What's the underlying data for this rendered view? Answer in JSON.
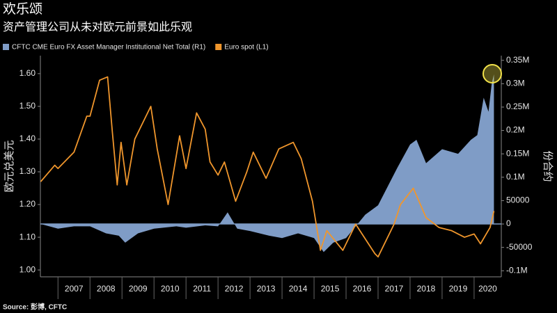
{
  "chart_data": {
    "type": "line-area",
    "title": "欢乐颂",
    "subtitle": "资产管理公司从未对欧元前景如此乐观",
    "source": "Source: 彭博, CFTC",
    "ylabel": "欧元兑美元",
    "y2label": "份合约",
    "xlim": [
      2006.45,
      2020.85
    ],
    "xticks": [
      {
        "value": 2007,
        "label": "2007"
      },
      {
        "value": 2008,
        "label": "2008"
      },
      {
        "value": 2009,
        "label": "2009"
      },
      {
        "value": 2010,
        "label": "2010"
      },
      {
        "value": 2011,
        "label": "2011"
      },
      {
        "value": 2012,
        "label": "2012"
      },
      {
        "value": 2013,
        "label": "2013"
      },
      {
        "value": 2014,
        "label": "2014"
      },
      {
        "value": 2015,
        "label": "2015"
      },
      {
        "value": 2016,
        "label": "2016"
      },
      {
        "value": 2017,
        "label": "2017"
      },
      {
        "value": 2018,
        "label": "2018"
      },
      {
        "value": 2019,
        "label": "2019"
      },
      {
        "value": 2020,
        "label": "2020"
      }
    ],
    "ylim": [
      0.979,
      1.655
    ],
    "yticks": [
      {
        "value": 1.0,
        "label": "1.00"
      },
      {
        "value": 1.1,
        "label": "1.10"
      },
      {
        "value": 1.2,
        "label": "1.20"
      },
      {
        "value": 1.3,
        "label": "1.30"
      },
      {
        "value": 1.4,
        "label": "1.40"
      },
      {
        "value": 1.5,
        "label": "1.50"
      },
      {
        "value": 1.6,
        "label": "1.60"
      }
    ],
    "y2lim": [
      -113000,
      360000
    ],
    "y2ticks": [
      {
        "value": -100000,
        "label": "-0.1M"
      },
      -50000,
      0,
      50000,
      {
        "value": 100000,
        "label": "0.1M"
      },
      {
        "value": 150000,
        "label": "0.15M"
      },
      {
        "value": 200000,
        "label": "0.2M"
      },
      {
        "value": 250000,
        "label": "0.25M"
      },
      {
        "value": 300000,
        "label": "0.3M"
      },
      {
        "value": 350000,
        "label": "0.35M"
      }
    ],
    "series": [
      {
        "name": "CFTC CME Euro FX Asset Manager Institutional Net Total (R1)",
        "color": "#7f9cc6",
        "kind": "area",
        "axis": "y2",
        "x": [
          2006.46,
          2007.0,
          2007.5,
          2008.0,
          2008.5,
          2008.9,
          2009.1,
          2009.5,
          2010.0,
          2010.7,
          2011.0,
          2011.6,
          2012.0,
          2012.3,
          2012.6,
          2013.0,
          2013.6,
          2014.0,
          2014.5,
          2015.0,
          2015.3,
          2015.6,
          2016.0,
          2016.6,
          2017.0,
          2017.3,
          2017.6,
          2018.0,
          2018.2,
          2018.5,
          2019.0,
          2019.5,
          2019.9,
          2020.1,
          2020.3,
          2020.45,
          2020.55,
          2020.62
        ],
        "values": [
          0,
          -10000,
          -5000,
          -5000,
          -20000,
          -25000,
          -40000,
          -20000,
          -10000,
          -5000,
          -8000,
          -3000,
          -5000,
          25000,
          -10000,
          -15000,
          -25000,
          -30000,
          -20000,
          -30000,
          -60000,
          -40000,
          -30000,
          20000,
          40000,
          80000,
          120000,
          170000,
          180000,
          130000,
          160000,
          150000,
          180000,
          190000,
          270000,
          240000,
          300000,
          320000
        ]
      },
      {
        "name": "Euro spot (L1)",
        "color": "#f0962c",
        "kind": "line",
        "axis": "y",
        "x": [
          2006.46,
          2006.9,
          2007.0,
          2007.5,
          2007.9,
          2008.0,
          2008.3,
          2008.55,
          2008.7,
          2008.85,
          2008.97,
          2009.15,
          2009.4,
          2009.9,
          2010.1,
          2010.44,
          2010.8,
          2011.0,
          2011.33,
          2011.6,
          2011.75,
          2012.0,
          2012.2,
          2012.55,
          2012.9,
          2013.1,
          2013.5,
          2013.9,
          2014.35,
          2014.6,
          2014.95,
          2015.2,
          2015.4,
          2015.9,
          2016.3,
          2016.9,
          2017.0,
          2017.5,
          2017.7,
          2018.1,
          2018.5,
          2018.9,
          2019.3,
          2019.7,
          2020.0,
          2020.2,
          2020.5,
          2020.62
        ],
        "values": [
          1.27,
          1.32,
          1.31,
          1.36,
          1.47,
          1.47,
          1.58,
          1.59,
          1.42,
          1.26,
          1.39,
          1.26,
          1.4,
          1.5,
          1.37,
          1.2,
          1.41,
          1.31,
          1.48,
          1.43,
          1.33,
          1.29,
          1.33,
          1.21,
          1.3,
          1.36,
          1.28,
          1.37,
          1.39,
          1.34,
          1.21,
          1.06,
          1.12,
          1.06,
          1.14,
          1.05,
          1.04,
          1.14,
          1.2,
          1.25,
          1.16,
          1.13,
          1.12,
          1.1,
          1.11,
          1.08,
          1.13,
          1.18
        ]
      }
    ]
  }
}
